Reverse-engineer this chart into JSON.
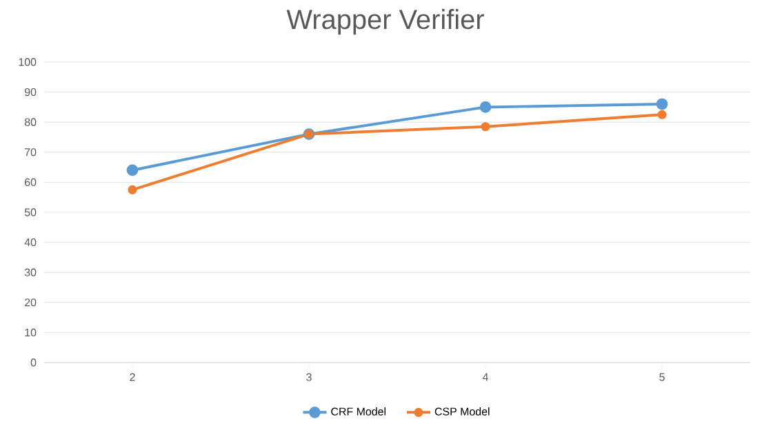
{
  "chart_data": {
    "type": "line",
    "title": "Wrapper Verifier",
    "categories": [
      "2",
      "3",
      "4",
      "5"
    ],
    "series": [
      {
        "name": "CRF Model",
        "color": "#5b9bd5",
        "values": [
          64,
          76,
          85,
          86
        ]
      },
      {
        "name": "CSP Model",
        "color": "#ed7d31",
        "values": [
          57.5,
          76,
          78.5,
          82.5
        ]
      }
    ],
    "ylim": [
      0,
      100
    ],
    "yticks": [
      0,
      10,
      20,
      30,
      40,
      50,
      60,
      70,
      80,
      90,
      100
    ],
    "grid": "y",
    "legend": "bottom",
    "marker": "circle",
    "line_style": "solid"
  }
}
